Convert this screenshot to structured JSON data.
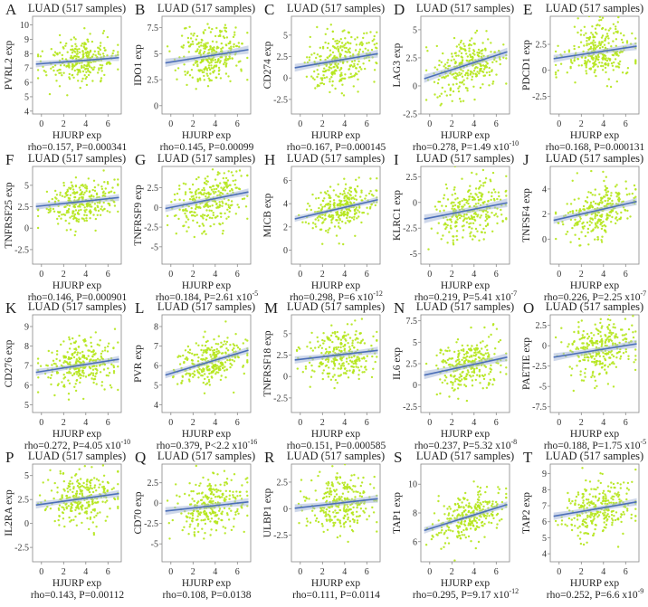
{
  "figure": {
    "panel_title": "LUAD (517 samples)",
    "xlabel": "HJURP  exp"
  },
  "chart_data": [
    {
      "letter": "A",
      "type": "scatter",
      "title": "LUAD (517 samples)",
      "xlabel": "HJURP  exp",
      "ylabel": "PVRL2  exp",
      "xlim": [
        -0.8,
        7.2
      ],
      "xticks": [
        0,
        2,
        4,
        6
      ],
      "ylim": [
        3.8,
        10.6
      ],
      "yticks": [
        4,
        5,
        6,
        7,
        8,
        9,
        10
      ],
      "fit": {
        "y_at_x0": 7.3,
        "slope": 0.06
      },
      "spread": 0.8,
      "stat_text": "rho=0.157, P=0.000341",
      "stat_exp": ""
    },
    {
      "letter": "B",
      "type": "scatter",
      "title": "LUAD (517 samples)",
      "xlabel": "HJURP  exp",
      "ylabel": "IDO1  exp",
      "xlim": [
        -0.8,
        7.2
      ],
      "xticks": [
        0,
        2,
        4,
        6
      ],
      "ylim": [
        -0.8,
        8.6
      ],
      "yticks": [
        0,
        2.5,
        5,
        7.5
      ],
      "fit": {
        "y_at_x0": 4.2,
        "slope": 0.17
      },
      "spread": 1.4,
      "stat_text": "rho=0.145, P=0.00099",
      "stat_exp": ""
    },
    {
      "letter": "C",
      "type": "scatter",
      "title": "LUAD (517 samples)",
      "xlabel": "HJURP  exp",
      "ylabel": "CD274  exp",
      "xlim": [
        -0.8,
        7.2
      ],
      "xticks": [
        0,
        2,
        4,
        6
      ],
      "ylim": [
        -4.2,
        7.2
      ],
      "yticks": [
        -2.5,
        0,
        2.5,
        5
      ],
      "fit": {
        "y_at_x0": 1.3,
        "slope": 0.22
      },
      "spread": 1.6,
      "stat_text": "rho=0.167, P=0.000145",
      "stat_exp": ""
    },
    {
      "letter": "D",
      "type": "scatter",
      "title": "LUAD (517 samples)",
      "xlabel": "HJURP  exp",
      "ylabel": "LAG3  exp",
      "xlim": [
        -0.8,
        7.2
      ],
      "xticks": [
        0,
        2,
        4,
        6
      ],
      "ylim": [
        -2.5,
        6.2
      ],
      "yticks": [
        -2.5,
        0,
        2.5,
        5
      ],
      "fit": {
        "y_at_x0": 0.8,
        "slope": 0.32
      },
      "spread": 1.3,
      "stat_text": "rho=0.278, P=1.49 x10",
      "stat_exp": "-10"
    },
    {
      "letter": "E",
      "type": "scatter",
      "title": "LUAD (517 samples)",
      "xlabel": "HJURP  exp",
      "ylabel": "PDCD1  exp",
      "xlim": [
        -0.8,
        7.2
      ],
      "xticks": [
        0,
        2,
        4,
        6
      ],
      "ylim": [
        -4.2,
        5.2
      ],
      "yticks": [
        -2.5,
        0,
        2.5
      ],
      "fit": {
        "y_at_x0": 1.2,
        "slope": 0.16
      },
      "spread": 1.3,
      "stat_text": "rho=0.168, P=0.000131",
      "stat_exp": ""
    },
    {
      "letter": "F",
      "type": "scatter",
      "title": "LUAD (517 samples)",
      "xlabel": "HJURP  exp",
      "ylabel": "TNFRSF25  exp",
      "xlim": [
        -0.8,
        7.2
      ],
      "xticks": [
        0,
        2,
        4,
        6
      ],
      "ylim": [
        -4.2,
        7.2
      ],
      "yticks": [
        -2.5,
        0,
        2.5,
        5
      ],
      "fit": {
        "y_at_x0": 2.6,
        "slope": 0.14
      },
      "spread": 1.4,
      "stat_text": "rho=0.146, P=0.000901",
      "stat_exp": ""
    },
    {
      "letter": "G",
      "type": "scatter",
      "title": "LUAD (517 samples)",
      "xlabel": "HJURP  exp",
      "ylabel": "TNFRSF9  exp",
      "xlim": [
        -0.8,
        7.2
      ],
      "xticks": [
        0,
        2,
        4,
        6
      ],
      "ylim": [
        -7.2,
        5.2
      ],
      "yticks": [
        -5,
        -2.5,
        0,
        2.5
      ],
      "fit": {
        "y_at_x0": 0.0,
        "slope": 0.28
      },
      "spread": 1.6,
      "stat_text": "rho=0.184, P=2.61 x10",
      "stat_exp": "-5"
    },
    {
      "letter": "H",
      "type": "scatter",
      "title": "LUAD (517 samples)",
      "xlabel": "HJURP  exp",
      "ylabel": "MICB  exp",
      "xlim": [
        -0.8,
        7.2
      ],
      "xticks": [
        0,
        2,
        4,
        6
      ],
      "ylim": [
        -1.2,
        7.2
      ],
      "yticks": [
        0,
        2,
        4,
        6
      ],
      "fit": {
        "y_at_x0": 2.8,
        "slope": 0.22
      },
      "spread": 0.9,
      "stat_text": "rho=0.298, P=6 x10",
      "stat_exp": "-12"
    },
    {
      "letter": "I",
      "type": "scatter",
      "title": "LUAD (517 samples)",
      "xlabel": "HJURP  exp",
      "ylabel": "KLRC1  exp",
      "xlim": [
        -0.8,
        7.2
      ],
      "xticks": [
        0,
        2,
        4,
        6
      ],
      "ylim": [
        -6.0,
        3.5
      ],
      "yticks": [
        -5,
        -2.5,
        0,
        2.5
      ],
      "fit": {
        "y_at_x0": -1.5,
        "slope": 0.21
      },
      "spread": 1.5,
      "stat_text": "rho=0.219, P=5.41 x10",
      "stat_exp": "-7"
    },
    {
      "letter": "J",
      "type": "scatter",
      "title": "LUAD (517 samples)",
      "xlabel": "HJURP  exp",
      "ylabel": "TNFSF4  exp",
      "xlim": [
        -0.8,
        7.2
      ],
      "xticks": [
        0,
        2,
        4,
        6
      ],
      "ylim": [
        -2.0,
        5.8
      ],
      "yticks": [
        0,
        2,
        4
      ],
      "fit": {
        "y_at_x0": 1.6,
        "slope": 0.2
      },
      "spread": 1.0,
      "stat_text": "rho=0.226, P=2.25 x10",
      "stat_exp": "-7"
    },
    {
      "letter": "K",
      "type": "scatter",
      "title": "LUAD (517 samples)",
      "xlabel": "HJURP  exp",
      "ylabel": "CD276  exp",
      "xlim": [
        -0.8,
        7.2
      ],
      "xticks": [
        0,
        2,
        4,
        6
      ],
      "ylim": [
        4.6,
        9.6
      ],
      "yticks": [
        5,
        6,
        7,
        8,
        9
      ],
      "fit": {
        "y_at_x0": 6.7,
        "slope": 0.09
      },
      "spread": 0.6,
      "stat_text": "rho=0.272, P=4.05 x10",
      "stat_exp": "-10"
    },
    {
      "letter": "L",
      "type": "scatter",
      "title": "LUAD (517 samples)",
      "xlabel": "HJURP  exp",
      "ylabel": "PVR  exp",
      "xlim": [
        -0.8,
        7.2
      ],
      "xticks": [
        0,
        2,
        4,
        6
      ],
      "ylim": [
        3.6,
        8.6
      ],
      "yticks": [
        4,
        5,
        6,
        7,
        8
      ],
      "fit": {
        "y_at_x0": 5.6,
        "slope": 0.17
      },
      "spread": 0.6,
      "stat_text": "rho=0.379, P<2.2 x10",
      "stat_exp": "-16"
    },
    {
      "letter": "M",
      "type": "scatter",
      "title": "LUAD (517 samples)",
      "xlabel": "HJURP  exp",
      "ylabel": "TNFRSF18  exp",
      "xlim": [
        -0.8,
        7.2
      ],
      "xticks": [
        0,
        2,
        4,
        6
      ],
      "ylim": [
        -4.2,
        7.2
      ],
      "yticks": [
        -2.5,
        0,
        2.5,
        5
      ],
      "fit": {
        "y_at_x0": 2.0,
        "slope": 0.15
      },
      "spread": 1.5,
      "stat_text": "rho=0.151, P=0.000585",
      "stat_exp": ""
    },
    {
      "letter": "N",
      "type": "scatter",
      "title": "LUAD (517 samples)",
      "xlabel": "HJURP  exp",
      "ylabel": "IL6  exp",
      "xlim": [
        -0.8,
        7.2
      ],
      "xticks": [
        0,
        2,
        4,
        6
      ],
      "ylim": [
        -3.2,
        8.2
      ],
      "yticks": [
        -2.5,
        0,
        2.5,
        5,
        7.5
      ],
      "fit": {
        "y_at_x0": 1.3,
        "slope": 0.28
      },
      "spread": 1.7,
      "stat_text": "rho=0.237, P=5.32 x10",
      "stat_exp": "-8"
    },
    {
      "letter": "O",
      "type": "scatter",
      "title": "LUAD (517 samples)",
      "xlabel": "HJURP  exp",
      "ylabel": "PAETIE  exp",
      "xlim": [
        -0.8,
        7.2
      ],
      "xticks": [
        0,
        2,
        4,
        6
      ],
      "ylim": [
        -8.2,
        3.8
      ],
      "yticks": [
        -7.5,
        -5,
        -2.5,
        0,
        2.5
      ],
      "fit": {
        "y_at_x0": -1.3,
        "slope": 0.22
      },
      "spread": 1.7,
      "stat_text": "rho=0.188, P=1.75 x10",
      "stat_exp": "-5"
    },
    {
      "letter": "P",
      "type": "scatter",
      "title": "LUAD (517 samples)",
      "xlabel": "HJURP  exp",
      "ylabel": "IL2RA  exp",
      "xlim": [
        -0.8,
        7.2
      ],
      "xticks": [
        0,
        2,
        4,
        6
      ],
      "ylim": [
        -4.0,
        6.2
      ],
      "yticks": [
        -2.5,
        0,
        2.5,
        5
      ],
      "fit": {
        "y_at_x0": 2.0,
        "slope": 0.16
      },
      "spread": 1.3,
      "stat_text": "rho=0.143, P=0.00112",
      "stat_exp": ""
    },
    {
      "letter": "Q",
      "type": "scatter",
      "title": "LUAD (517 samples)",
      "xlabel": "HJURP  exp",
      "ylabel": "CD70  exp",
      "xlim": [
        -0.8,
        7.2
      ],
      "xticks": [
        0,
        2,
        4,
        6
      ],
      "ylim": [
        -7.2,
        4.8
      ],
      "yticks": [
        -5,
        -2.5,
        0,
        2.5
      ],
      "fit": {
        "y_at_x0": -0.9,
        "slope": 0.15
      },
      "spread": 1.7,
      "stat_text": "rho=0.108, P=0.0138",
      "stat_exp": ""
    },
    {
      "letter": "R",
      "type": "scatter",
      "title": "LUAD (517 samples)",
      "xlabel": "HJURP  exp",
      "ylabel": "ULBP1  exp",
      "xlim": [
        -0.8,
        7.2
      ],
      "xticks": [
        0,
        2,
        4,
        6
      ],
      "ylim": [
        -5.0,
        4.2
      ],
      "yticks": [
        -2.5,
        0,
        2.5
      ],
      "fit": {
        "y_at_x0": 0.1,
        "slope": 0.12
      },
      "spread": 1.3,
      "stat_text": "rho=0.111, P=0.0114",
      "stat_exp": ""
    },
    {
      "letter": "S",
      "type": "scatter",
      "title": "LUAD (517 samples)",
      "xlabel": "HJURP  exp",
      "ylabel": "TAP1  exp",
      "xlim": [
        -0.8,
        7.2
      ],
      "xticks": [
        0,
        2,
        4,
        6
      ],
      "ylim": [
        4.6,
        11.4
      ],
      "yticks": [
        6,
        8,
        10
      ],
      "fit": {
        "y_at_x0": 6.9,
        "slope": 0.24
      },
      "spread": 0.8,
      "stat_text": "rho=0.295, P=9.17 x10",
      "stat_exp": "-12"
    },
    {
      "letter": "T",
      "type": "scatter",
      "title": "LUAD (517 samples)",
      "xlabel": "HJURP  exp",
      "ylabel": "TAP2  exp",
      "xlim": [
        -0.8,
        7.2
      ],
      "xticks": [
        0,
        2,
        4,
        6
      ],
      "ylim": [
        3.5,
        9.6
      ],
      "yticks": [
        4,
        5,
        6,
        7,
        8,
        9
      ],
      "fit": {
        "y_at_x0": 6.4,
        "slope": 0.12
      },
      "spread": 0.8,
      "stat_text": "rho=0.252, P=6.6 x10",
      "stat_exp": "-9"
    }
  ]
}
